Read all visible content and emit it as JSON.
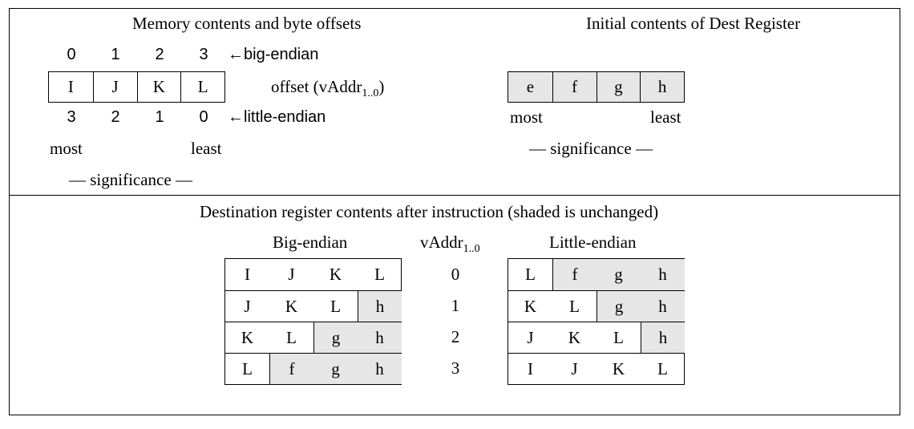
{
  "memory": {
    "title": "Memory contents and byte offsets",
    "big_offsets": [
      "0",
      "1",
      "2",
      "3"
    ],
    "big_label": "←big-endian",
    "bytes": [
      "I",
      "J",
      "K",
      "L"
    ],
    "offset_label_main": "offset (vAddr",
    "offset_label_sub": "1..0",
    "offset_label_end": ")",
    "little_offsets": [
      "3",
      "2",
      "1",
      "0"
    ],
    "little_label": "←little-endian",
    "most_label": "most",
    "least_label": "least",
    "significance_label": "— significance —"
  },
  "dest": {
    "title": "Initial contents of Dest Register",
    "bytes": [
      "e",
      "f",
      "g",
      "h"
    ],
    "most_label": "most",
    "least_label": "least",
    "significance_label": "— significance —"
  },
  "result": {
    "title": "Destination register contents after instruction (shaded is unchanged)",
    "big_header": "Big-endian",
    "vaddr_header_main": "vAddr",
    "vaddr_header_sub": "1..0",
    "little_header": "Little-endian",
    "vaddr_values": [
      "0",
      "1",
      "2",
      "3"
    ],
    "big_rows": [
      [
        {
          "v": "I",
          "s": false
        },
        {
          "v": "J",
          "s": false
        },
        {
          "v": "K",
          "s": false
        },
        {
          "v": "L",
          "s": false
        }
      ],
      [
        {
          "v": "J",
          "s": false
        },
        {
          "v": "K",
          "s": false
        },
        {
          "v": "L",
          "s": false
        },
        {
          "v": "h",
          "s": true
        }
      ],
      [
        {
          "v": "K",
          "s": false
        },
        {
          "v": "L",
          "s": false
        },
        {
          "v": "g",
          "s": true
        },
        {
          "v": "h",
          "s": true
        }
      ],
      [
        {
          "v": "L",
          "s": false
        },
        {
          "v": "f",
          "s": true
        },
        {
          "v": "g",
          "s": true
        },
        {
          "v": "h",
          "s": true
        }
      ]
    ],
    "little_rows": [
      [
        {
          "v": "L",
          "s": false
        },
        {
          "v": "f",
          "s": true
        },
        {
          "v": "g",
          "s": true
        },
        {
          "v": "h",
          "s": true
        }
      ],
      [
        {
          "v": "K",
          "s": false
        },
        {
          "v": "L",
          "s": false
        },
        {
          "v": "g",
          "s": true
        },
        {
          "v": "h",
          "s": true
        }
      ],
      [
        {
          "v": "J",
          "s": false
        },
        {
          "v": "K",
          "s": false
        },
        {
          "v": "L",
          "s": false
        },
        {
          "v": "h",
          "s": true
        }
      ],
      [
        {
          "v": "I",
          "s": false
        },
        {
          "v": "J",
          "s": false
        },
        {
          "v": "K",
          "s": false
        },
        {
          "v": "L",
          "s": false
        }
      ]
    ]
  }
}
